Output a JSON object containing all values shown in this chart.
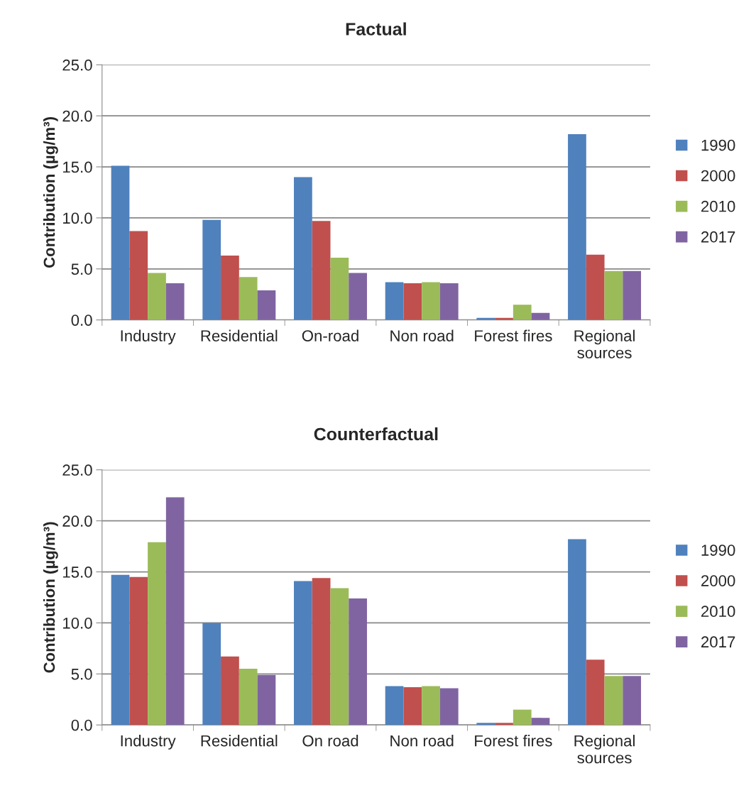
{
  "chart_data": [
    {
      "type": "bar",
      "title": "Factual",
      "ylabel": "Contribution (µg/m³)",
      "categories": [
        "Industry",
        "Residential",
        "On-road",
        "Non road",
        "Forest fires",
        "Regional\nsources"
      ],
      "series": [
        {
          "name": "1990",
          "color": "#4f81bd",
          "values": [
            15.1,
            9.8,
            14.0,
            3.7,
            0.2,
            18.2
          ]
        },
        {
          "name": "2000",
          "color": "#c0504d",
          "values": [
            8.7,
            6.3,
            9.7,
            3.6,
            0.2,
            6.4
          ]
        },
        {
          "name": "2010",
          "color": "#9bbb59",
          "values": [
            4.6,
            4.2,
            6.1,
            3.7,
            1.5,
            4.8
          ]
        },
        {
          "name": "2017",
          "color": "#8064a2",
          "values": [
            3.6,
            2.9,
            4.6,
            3.6,
            0.7,
            4.8
          ]
        }
      ],
      "ylim": [
        0,
        25
      ],
      "yticks": [
        {
          "value": 0,
          "label": "0.0"
        },
        {
          "value": 5,
          "label": "5.0"
        },
        {
          "value": 10,
          "label": "10.0"
        },
        {
          "value": 15,
          "label": "15.0"
        },
        {
          "value": 20,
          "label": "20.0"
        },
        {
          "value": 25,
          "label": "25.0"
        }
      ],
      "grid": "y",
      "legend": "right"
    },
    {
      "type": "bar",
      "title": "Counterfactual",
      "ylabel": "Contribution (µg/m³)",
      "categories": [
        "Industry",
        "Residential",
        "On road",
        "Non road",
        "Forest fires",
        "Regional\nsources"
      ],
      "series": [
        {
          "name": "1990",
          "color": "#4f81bd",
          "values": [
            14.7,
            10.0,
            14.1,
            3.8,
            0.2,
            18.2
          ]
        },
        {
          "name": "2000",
          "color": "#c0504d",
          "values": [
            14.5,
            6.7,
            14.4,
            3.7,
            0.2,
            6.4
          ]
        },
        {
          "name": "2010",
          "color": "#9bbb59",
          "values": [
            17.9,
            5.5,
            13.4,
            3.8,
            1.5,
            4.8
          ]
        },
        {
          "name": "2017",
          "color": "#8064a2",
          "values": [
            22.3,
            4.9,
            12.4,
            3.6,
            0.7,
            4.8
          ]
        }
      ],
      "ylim": [
        0,
        25
      ],
      "yticks": [
        {
          "value": 0,
          "label": "0.0"
        },
        {
          "value": 5,
          "label": "5.0"
        },
        {
          "value": 10,
          "label": "10.0"
        },
        {
          "value": 15,
          "label": "15.0"
        },
        {
          "value": 20,
          "label": "20.0"
        },
        {
          "value": 25,
          "label": "25.0"
        }
      ],
      "grid": "y",
      "legend": "right"
    }
  ]
}
